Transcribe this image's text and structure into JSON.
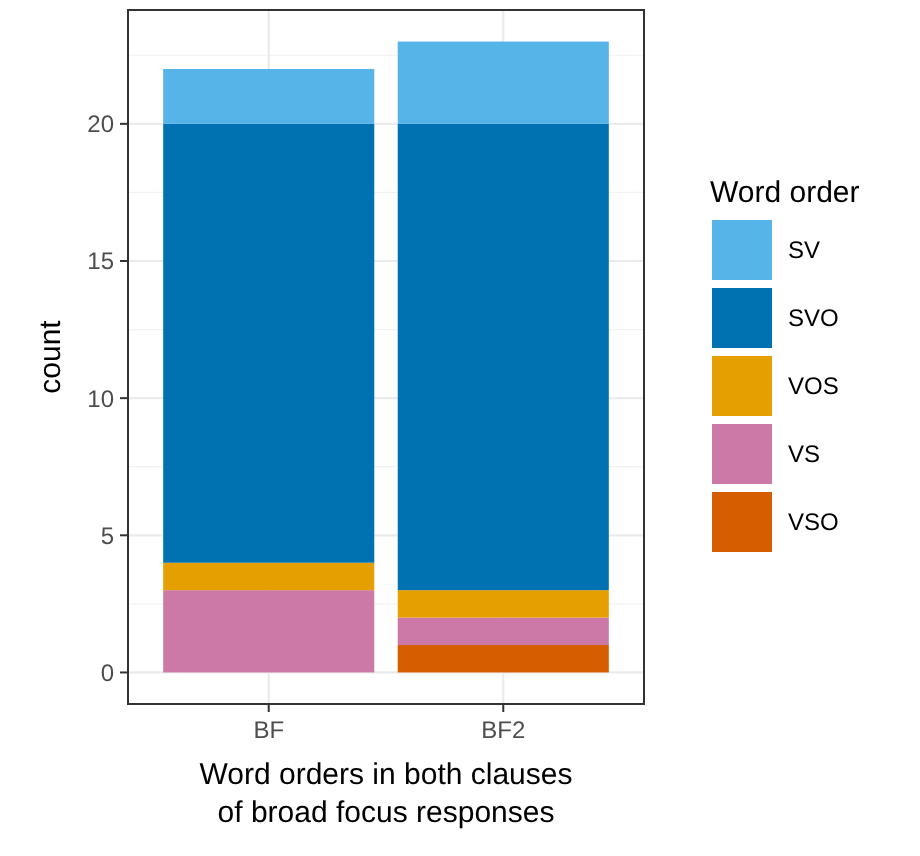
{
  "chart_data": {
    "type": "bar",
    "stacked": true,
    "categories": [
      "BF",
      "BF2"
    ],
    "series": [
      {
        "name": "VSO",
        "color": "#d55e00",
        "values": [
          0,
          1
        ]
      },
      {
        "name": "VS",
        "color": "#cc79a7",
        "values": [
          3,
          1
        ]
      },
      {
        "name": "VOS",
        "color": "#e69f00",
        "values": [
          1,
          1
        ]
      },
      {
        "name": "SVO",
        "color": "#0072b2",
        "values": [
          16,
          17
        ]
      },
      {
        "name": "SV",
        "color": "#56b4e9",
        "values": [
          2,
          3
        ]
      }
    ],
    "xlabel": "Word orders in both clauses\nof broad focus responses",
    "ylabel": "count",
    "legend_title": "Word order",
    "legend": "right",
    "ylim": [
      -1.15,
      24.15
    ],
    "yticks": [
      0,
      5,
      10,
      15,
      20
    ],
    "grid": true
  }
}
